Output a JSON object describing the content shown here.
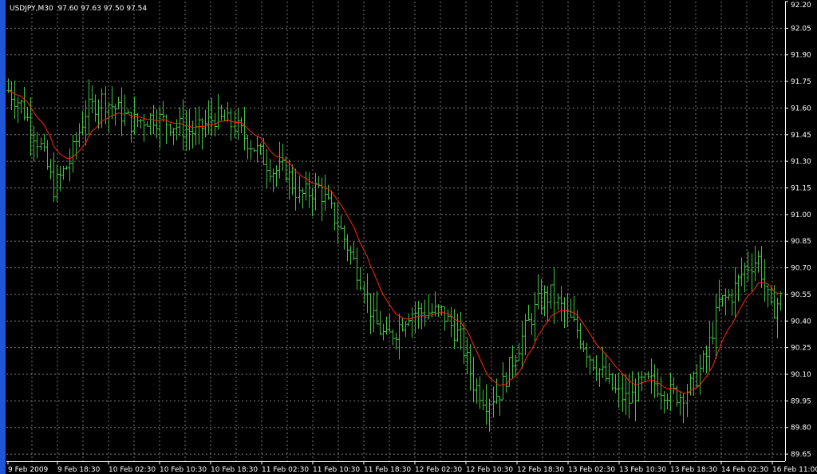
{
  "chart_header": {
    "symbol": "USDJPY,M30",
    "open": "97.60",
    "high": "97.63",
    "low": "97.50",
    "close": "97.54"
  },
  "chart_data": {
    "type": "bar",
    "title": "",
    "xlabel": "",
    "ylabel": "",
    "ylim": [
      89.61,
      92.2
    ],
    "grid": true,
    "colors": {
      "background": "#000000",
      "grid": "#7a7a7a",
      "bars": "#3ec43e",
      "ma_line": "#ff2a00",
      "axis": "#ffffff",
      "text": "#ffffff"
    },
    "y_ticks": [
      "92.20",
      "92.05",
      "91.90",
      "91.75",
      "91.60",
      "91.45",
      "91.30",
      "91.15",
      "91.00",
      "90.85",
      "90.70",
      "90.55",
      "90.40",
      "90.25",
      "90.10",
      "89.95",
      "89.80",
      "89.65"
    ],
    "x_ticks": [
      "9 Feb 2009",
      "9 Feb 18:30",
      "10 Feb 02:30",
      "10 Feb 10:30",
      "10 Feb 18:30",
      "11 Feb 02:30",
      "11 Feb 10:30",
      "11 Feb 18:30",
      "12 Feb 02:30",
      "12 Feb 10:30",
      "12 Feb 18:30",
      "13 Feb 02:30",
      "13 Feb 10:30",
      "13 Feb 18:30",
      "14 Feb 02:30",
      "16 Feb 11:00"
    ],
    "bar_count": 240,
    "close_path": [
      [
        0,
        91.7
      ],
      [
        4,
        91.62
      ],
      [
        10,
        91.38
      ],
      [
        14,
        91.15
      ],
      [
        19,
        91.3
      ],
      [
        24,
        91.58
      ],
      [
        29,
        91.65
      ],
      [
        33,
        91.6
      ],
      [
        38,
        91.52
      ],
      [
        45,
        91.55
      ],
      [
        52,
        91.5
      ],
      [
        58,
        91.46
      ],
      [
        64,
        91.55
      ],
      [
        70,
        91.5
      ],
      [
        76,
        91.38
      ],
      [
        82,
        91.25
      ],
      [
        86,
        91.25
      ],
      [
        90,
        91.1
      ],
      [
        96,
        91.15
      ],
      [
        102,
        90.95
      ],
      [
        106,
        90.78
      ],
      [
        110,
        90.6
      ],
      [
        113,
        90.4
      ],
      [
        117,
        90.3
      ],
      [
        120,
        90.35
      ],
      [
        124,
        90.45
      ],
      [
        128,
        90.45
      ],
      [
        134,
        90.45
      ],
      [
        140,
        90.3
      ],
      [
        144,
        90.05
      ],
      [
        148,
        89.95
      ],
      [
        152,
        90.0
      ],
      [
        156,
        90.18
      ],
      [
        160,
        90.35
      ],
      [
        164,
        90.5
      ],
      [
        168,
        90.55
      ],
      [
        172,
        90.45
      ],
      [
        176,
        90.35
      ],
      [
        180,
        90.2
      ],
      [
        184,
        90.1
      ],
      [
        188,
        90.0
      ],
      [
        192,
        89.95
      ],
      [
        196,
        90.05
      ],
      [
        200,
        90.05
      ],
      [
        204,
        90.0
      ],
      [
        208,
        89.98
      ],
      [
        212,
        90.05
      ],
      [
        216,
        90.2
      ],
      [
        220,
        90.5
      ],
      [
        224,
        90.55
      ],
      [
        228,
        90.7
      ],
      [
        232,
        90.75
      ],
      [
        236,
        90.45
      ],
      [
        240,
        90.55
      ]
    ],
    "ma_line_shown": true
  }
}
